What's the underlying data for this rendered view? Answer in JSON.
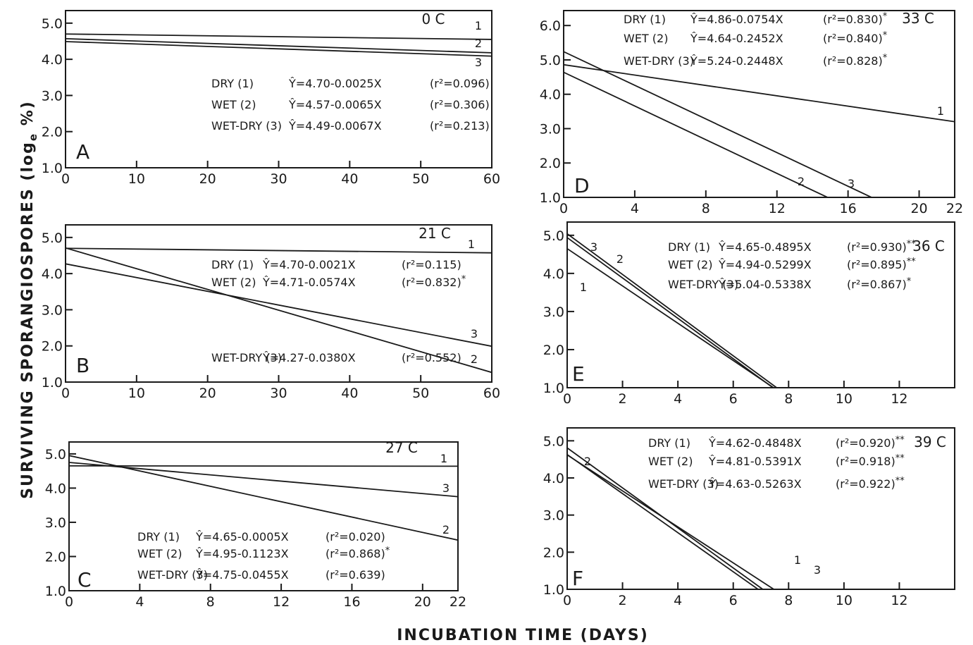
{
  "figure": {
    "ylabel": "SURVIVING SPORANGIOSPORES (log",
    "ylabel_sub": "e",
    "ylabel_tail": " %)",
    "xlabel": "INCUBATION TIME (DAYS)"
  },
  "chart_data": [
    {
      "type": "line",
      "panel": "A",
      "temperature": "0 C",
      "xlim": [
        0,
        60
      ],
      "ylim": [
        1.0,
        5.0
      ],
      "xticks": [
        "0",
        "10",
        "20",
        "30",
        "40",
        "50",
        "60"
      ],
      "yticks": [
        "1.0",
        "2.0",
        "3.0",
        "4.0",
        "5.0"
      ],
      "series": [
        {
          "name": "1",
          "prefix": "DRY (1)",
          "fit": "=4.70-0.0025X",
          "r2": "(r²=0.096)",
          "sig": "",
          "intercept": 4.7,
          "slope": -0.0025
        },
        {
          "name": "2",
          "prefix": "WET (2)",
          "fit": "=4.57-0.0065X",
          "r2": "(r²=0.306)",
          "sig": "",
          "intercept": 4.57,
          "slope": -0.0065
        },
        {
          "name": "3",
          "prefix": "WET-DRY (3)",
          "fit": "=4.49-0.0067X",
          "r2": "(r²=0.213)",
          "sig": "",
          "intercept": 4.49,
          "slope": -0.0067
        }
      ]
    },
    {
      "type": "line",
      "panel": "B",
      "temperature": "21 C",
      "xlim": [
        0,
        60
      ],
      "ylim": [
        1.0,
        5.0
      ],
      "xticks": [
        "0",
        "10",
        "20",
        "30",
        "40",
        "50",
        "60"
      ],
      "yticks": [
        "1.0",
        "2.0",
        "3.0",
        "4.0",
        "5.0"
      ],
      "series": [
        {
          "name": "1",
          "prefix": "DRY (1)",
          "fit": "=4.70-0.0021X",
          "r2": "(r²=0.115)",
          "sig": "",
          "intercept": 4.7,
          "slope": -0.0021
        },
        {
          "name": "2",
          "prefix": "WET (2)",
          "fit": "=4.71-0.0574X",
          "r2": "(r²=0.832)",
          "sig": "*",
          "intercept": 4.71,
          "slope": -0.0574
        },
        {
          "name": "3",
          "prefix": "WET-DRY (3)",
          "fit": "=4.27-0.0380X",
          "r2": "(r²=0.552)",
          "sig": "",
          "intercept": 4.27,
          "slope": -0.038
        }
      ]
    },
    {
      "type": "line",
      "panel": "C",
      "temperature": "27 C",
      "xlim": [
        0,
        22
      ],
      "ylim": [
        1.0,
        5.0
      ],
      "xticks": [
        "0",
        "4",
        "8",
        "12",
        "16",
        "20",
        "22"
      ],
      "yticks": [
        "1.0",
        "2.0",
        "3.0",
        "4.0",
        "5.0"
      ],
      "series": [
        {
          "name": "1",
          "prefix": "DRY (1)",
          "fit": "=4.65-0.0005X",
          "r2": "(r²=0.020)",
          "sig": "",
          "intercept": 4.65,
          "slope": -0.0005
        },
        {
          "name": "2",
          "prefix": "WET (2)",
          "fit": "=4.95-0.1123X",
          "r2": "(r²=0.868)",
          "sig": "*",
          "intercept": 4.95,
          "slope": -0.1123
        },
        {
          "name": "3",
          "prefix": "WET-DRY (3)",
          "fit": "=4.75-0.0455X",
          "r2": "(r²=0.639)",
          "sig": "",
          "intercept": 4.75,
          "slope": -0.0455
        }
      ]
    },
    {
      "type": "line",
      "panel": "D",
      "temperature": "33 C",
      "xlim": [
        0,
        22
      ],
      "ylim": [
        1.0,
        6.0
      ],
      "xticks": [
        "0",
        "4",
        "8",
        "12",
        "16",
        "20",
        "22"
      ],
      "yticks": [
        "1.0",
        "2.0",
        "3.0",
        "4.0",
        "5.0",
        "6.0"
      ],
      "series": [
        {
          "name": "1",
          "prefix": "DRY (1)",
          "fit": "=4.86-0.0754X",
          "r2": "(r²=0.830)",
          "sig": "*",
          "intercept": 4.86,
          "slope": -0.0754
        },
        {
          "name": "2",
          "prefix": "WET (2)",
          "fit": "=4.64-0.2452X",
          "r2": "(r²=0.840)",
          "sig": "*",
          "intercept": 4.64,
          "slope": -0.2452
        },
        {
          "name": "3",
          "prefix": "WET-DRY (3)",
          "fit": "=5.24-0.2448X",
          "r2": "(r²=0.828)",
          "sig": "*",
          "intercept": 5.24,
          "slope": -0.2448
        }
      ]
    },
    {
      "type": "line",
      "panel": "E",
      "temperature": "36 C",
      "xlim": [
        0,
        14
      ],
      "ylim": [
        1.0,
        5.0
      ],
      "xticks": [
        "0",
        "2",
        "4",
        "6",
        "8",
        "10",
        "12"
      ],
      "yticks": [
        "1.0",
        "2.0",
        "3.0",
        "4.0",
        "5.0"
      ],
      "series": [
        {
          "name": "1",
          "prefix": "DRY (1)",
          "fit": "=4.65-0.4895X",
          "r2": "(r²=0.930)",
          "sig": "**",
          "intercept": 4.65,
          "slope": -0.4895
        },
        {
          "name": "2",
          "prefix": "WET (2)",
          "fit": "=4.94-0.5299X",
          "r2": "(r²=0.895)",
          "sig": "**",
          "intercept": 4.94,
          "slope": -0.5299
        },
        {
          "name": "3",
          "prefix": "WET-DRY (3)",
          "fit": "=5.04-0.5338X",
          "r2": "(r²=0.867)",
          "sig": "*",
          "intercept": 5.04,
          "slope": -0.5338
        }
      ]
    },
    {
      "type": "line",
      "panel": "F",
      "temperature": "39 C",
      "xlim": [
        0,
        14
      ],
      "ylim": [
        1.0,
        5.0
      ],
      "xticks": [
        "0",
        "2",
        "4",
        "6",
        "8",
        "10",
        "12"
      ],
      "yticks": [
        "1.0",
        "2.0",
        "3.0",
        "4.0",
        "5.0"
      ],
      "series": [
        {
          "name": "1",
          "prefix": "DRY (1)",
          "fit": "=4.62-0.4848X",
          "r2": "(r²=0.920)",
          "sig": "**",
          "intercept": 4.62,
          "slope": -0.4848
        },
        {
          "name": "2",
          "prefix": "WET (2)",
          "fit": "=4.81-0.5391X",
          "r2": "(r²=0.918)",
          "sig": "**",
          "intercept": 4.81,
          "slope": -0.5391
        },
        {
          "name": "3",
          "prefix": "WET-DRY (3)",
          "fit": "=4.63-0.5263X",
          "r2": "(r²=0.922)",
          "sig": "**",
          "intercept": 4.63,
          "slope": -0.5263
        }
      ]
    }
  ]
}
